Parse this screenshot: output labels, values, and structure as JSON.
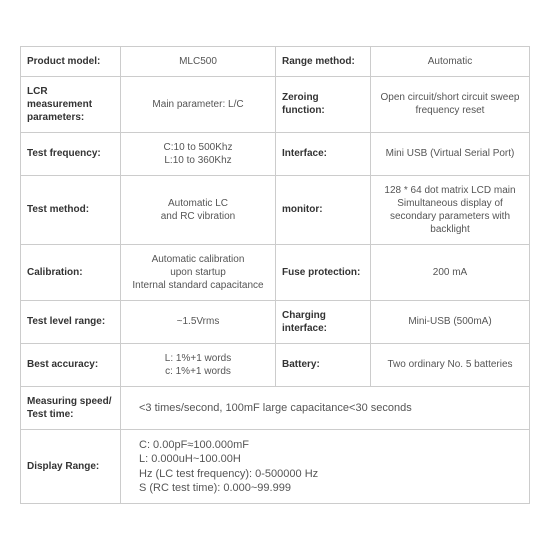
{
  "rows": [
    {
      "l1": "Product model:",
      "v1": "MLC500",
      "l2": "Range method:",
      "v2": "Automatic"
    },
    {
      "l1": "LCR measurement\nparameters:",
      "v1": "Main parameter: L/C",
      "l2": "Zeroing function:",
      "v2": "Open circuit/short circuit sweep\nfrequency reset"
    },
    {
      "l1": "Test frequency:",
      "v1": "C:10 to 500Khz\nL:10 to 360Khz",
      "l2": "Interface:",
      "v2": "Mini USB (Virtual Serial Port)"
    },
    {
      "l1": "Test method:",
      "v1": "Automatic LC\nand RC vibration",
      "l2": "monitor:",
      "v2": "128 * 64 dot matrix LCD main\nSimultaneous display of\nsecondary parameters with backlight"
    },
    {
      "l1": "Calibration:",
      "v1": "Automatic calibration\nupon startup\nInternal standard capacitance",
      "l2": "Fuse protection:",
      "v2": "200 mA"
    },
    {
      "l1": "Test level range:",
      "v1": "~1.5Vrms",
      "l2": "Charging interface:",
      "v2": "Mini-USB  (500mA)"
    },
    {
      "l1": "Best accuracy:",
      "v1": "L: 1%+1 words\nc: 1%+1 words",
      "l2": "Battery:",
      "v2": "Two ordinary No. 5 batteries"
    }
  ],
  "wide": [
    {
      "l": "Measuring speed/\nTest time:",
      "v": "<3 times/second, 100mF large capacitance<30 seconds"
    },
    {
      "l": "Display Range:",
      "v": "C:  0.00pF≈100.000mF\nL:  0.000uH~100.00H\nHz (LC test frequency): 0-500000 Hz\nS (RC test time): 0.000~99.999"
    }
  ],
  "style": {
    "border_color": "#cccccc",
    "label_color": "#333333",
    "value_color": "#555555",
    "background": "#ffffff",
    "font_size_cell": 10,
    "font_size_wide": 11
  }
}
